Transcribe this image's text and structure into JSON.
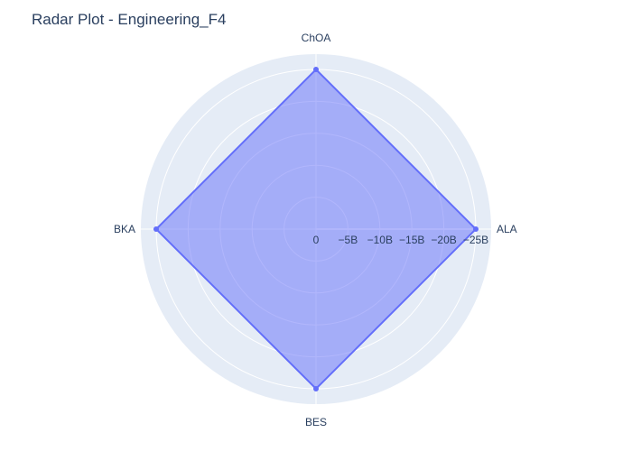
{
  "chart_data": {
    "type": "radar",
    "title": "Radar Plot - Engineering_F4",
    "axes": [
      "ALA",
      "ChOA",
      "BKA",
      "BES"
    ],
    "radial_ticks": [
      "0",
      "−5B",
      "−10B",
      "−15B",
      "−20B",
      "−25B"
    ],
    "radial_range": [
      0,
      -25000000000
    ],
    "series": [
      {
        "values": [
          -25000000000,
          -25000000000,
          -25000000000,
          -25000000000
        ],
        "color": "#636efa",
        "fill": "toself"
      }
    ],
    "grid": true,
    "background_color": "#e5ecf6"
  }
}
